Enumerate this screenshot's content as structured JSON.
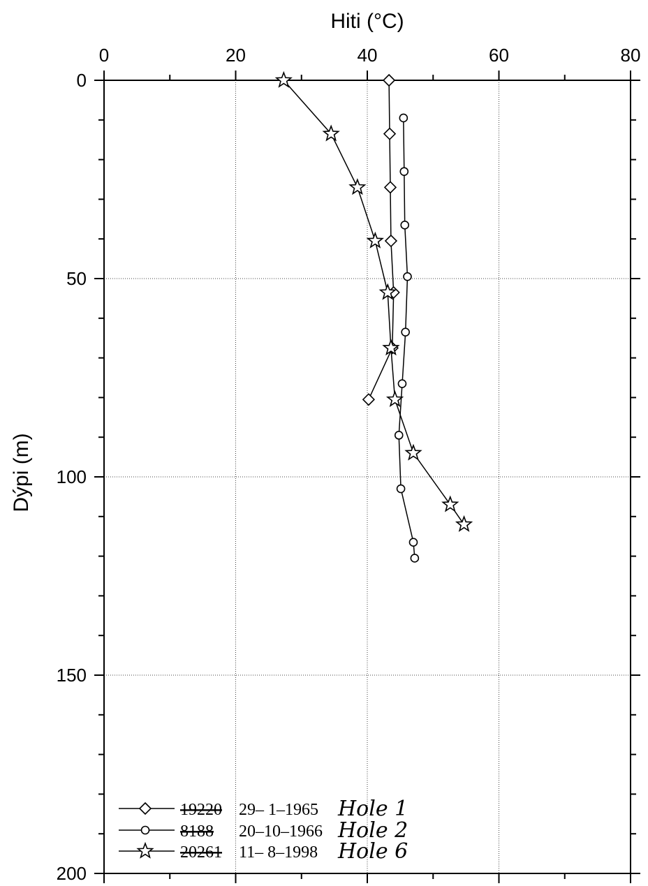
{
  "chart_data": {
    "type": "line",
    "title": "",
    "xlabel": "Hiti (°C)",
    "ylabel": "Dýpi (m)",
    "xlim": [
      0,
      80
    ],
    "ylim": [
      0,
      200
    ],
    "y_inverted": true,
    "x_axis_position": "top",
    "x_ticks": [
      0,
      20,
      40,
      60,
      80
    ],
    "x_tick_labels": [
      "0",
      "20",
      "40",
      "60",
      "80"
    ],
    "y_ticks": [
      0,
      50,
      100,
      150,
      200
    ],
    "y_tick_labels": [
      "0",
      "50",
      "100",
      "150",
      "200"
    ],
    "grid": true,
    "legend_position": "bottom-left",
    "series": [
      {
        "name": "19220 29-1-1965",
        "struck_prefix": "19220",
        "date_text": "29– 1–1965",
        "handwritten_label": "Hole 1",
        "marker": "diamond",
        "x": [
          43.3,
          43.4,
          43.5,
          43.6,
          44.0,
          43.8,
          40.2
        ],
        "y": [
          0,
          13.5,
          27,
          40.5,
          53.5,
          67.5,
          80.5
        ]
      },
      {
        "name": "8188 20-10-1966",
        "struck_prefix": "8188",
        "date_text": "20–10–1966",
        "handwritten_label": "Hole 2",
        "marker": "circle",
        "x": [
          45.5,
          45.6,
          45.7,
          46.1,
          45.8,
          45.3,
          44.8,
          45.1,
          47.0,
          47.2
        ],
        "y": [
          9.5,
          23,
          36.5,
          49.5,
          63.5,
          76.5,
          89.5,
          103,
          116.5,
          120.5
        ]
      },
      {
        "name": "20261 11-8-1998",
        "struck_prefix": "20261",
        "date_text": "11– 8–1998",
        "handwritten_label": "Hole 6",
        "marker": "star",
        "x": [
          27.3,
          34.5,
          38.5,
          41.2,
          43.1,
          43.6,
          44.2,
          47.0,
          52.6,
          54.7
        ],
        "y": [
          0,
          13.5,
          27,
          40.5,
          53.5,
          67.5,
          80.5,
          94,
          107,
          112
        ]
      }
    ]
  }
}
